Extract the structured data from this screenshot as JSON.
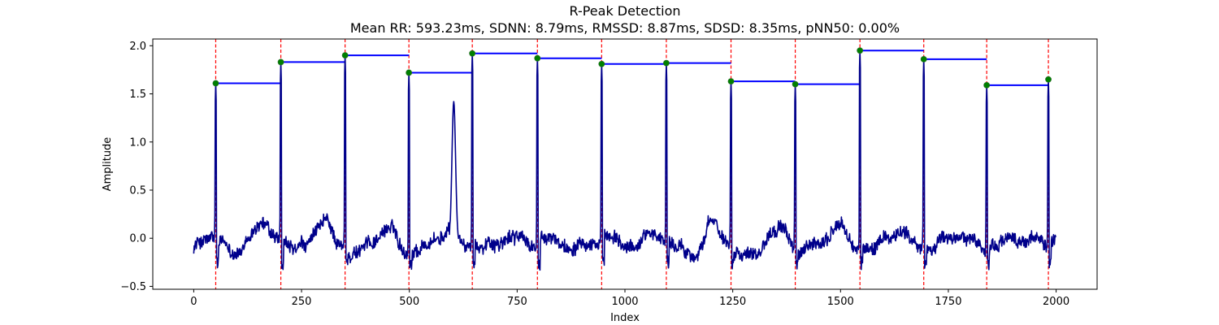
{
  "chart_data": {
    "type": "line",
    "title": "R-Peak Detection",
    "subtitle": "Mean RR: 593.23ms, SDNN: 8.79ms, RMSSD: 8.87ms, SDSD: 8.35ms, pNN50: 0.00%",
    "xlabel": "Index",
    "ylabel": "Amplitude",
    "xlim": [
      -95,
      2095
    ],
    "ylim": [
      -0.53,
      2.07
    ],
    "xticks": [
      0,
      250,
      500,
      750,
      1000,
      1250,
      1500,
      1750,
      2000
    ],
    "yticks": [
      -0.5,
      0.0,
      0.5,
      1.0,
      1.5,
      2.0
    ],
    "grid": false,
    "signal_color": "#00008b",
    "peak_line_color": "#ff0000",
    "rr_segment_color": "#0000ff",
    "peak_marker_color": "#008000",
    "r_peaks": [
      {
        "x": 51,
        "y": 1.61
      },
      {
        "x": 202,
        "y": 1.83
      },
      {
        "x": 351,
        "y": 1.9
      },
      {
        "x": 499,
        "y": 1.72
      },
      {
        "x": 646,
        "y": 1.92
      },
      {
        "x": 797,
        "y": 1.87
      },
      {
        "x": 946,
        "y": 1.81
      },
      {
        "x": 1096,
        "y": 1.82
      },
      {
        "x": 1246,
        "y": 1.63
      },
      {
        "x": 1395,
        "y": 1.6
      },
      {
        "x": 1545,
        "y": 1.95
      },
      {
        "x": 1693,
        "y": 1.86
      },
      {
        "x": 1839,
        "y": 1.59
      },
      {
        "x": 1982,
        "y": 1.65
      }
    ],
    "secondary_peak": {
      "x": 603,
      "y": 1.37
    }
  }
}
